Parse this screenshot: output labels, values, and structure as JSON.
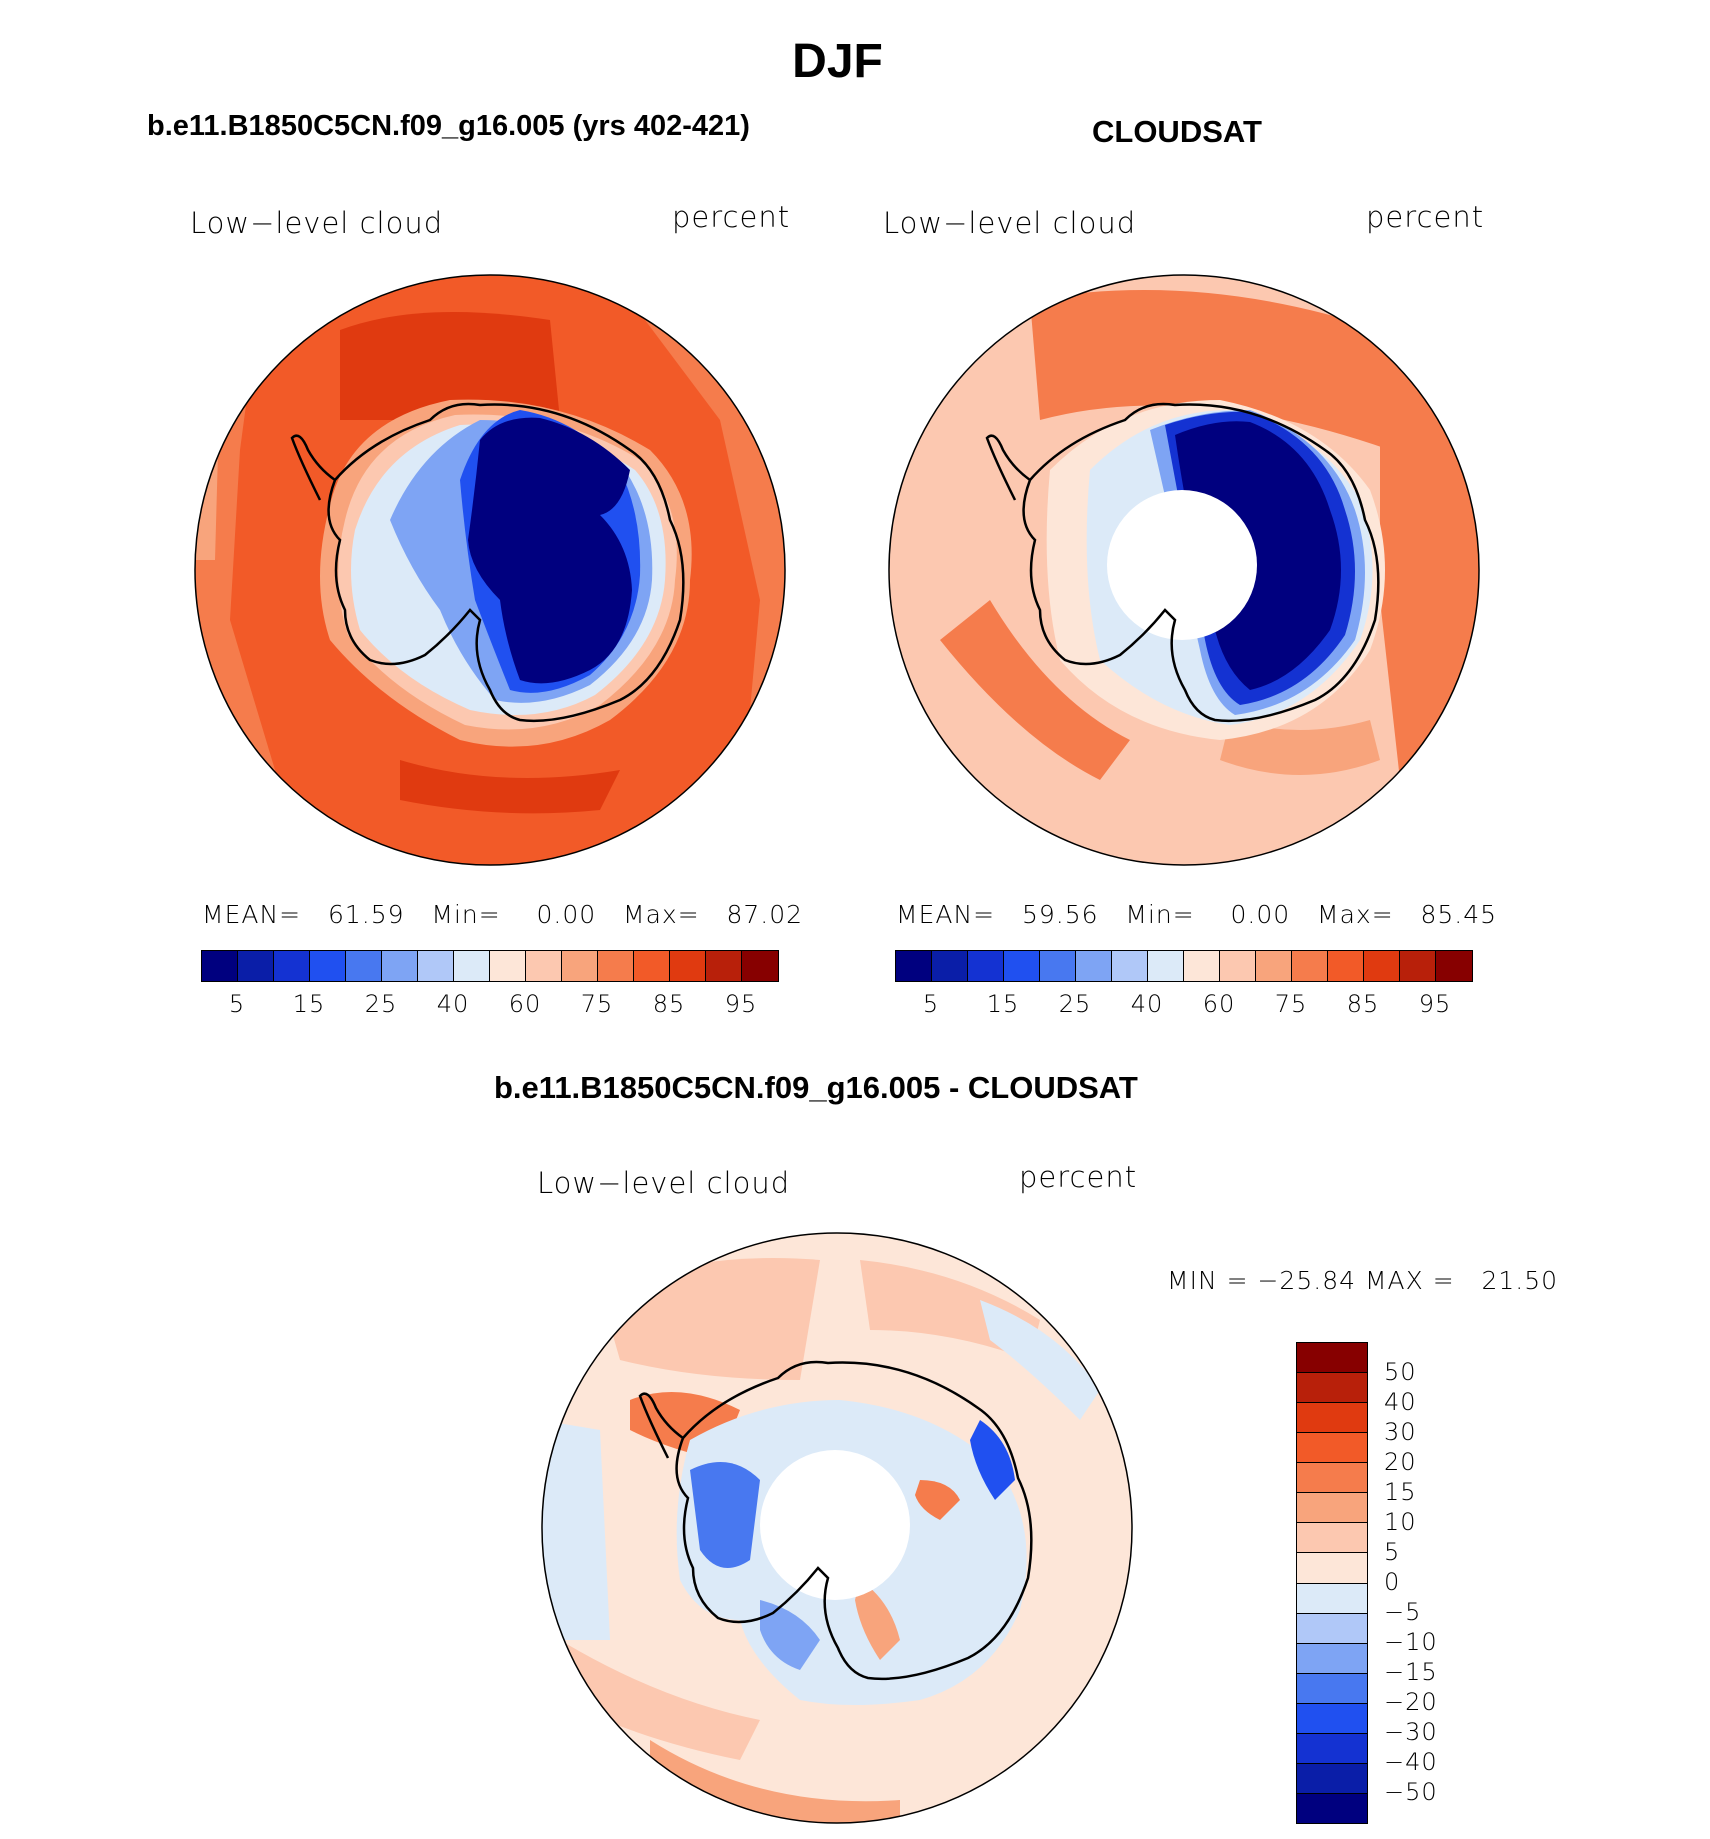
{
  "page_title": "DJF",
  "panel_a": {
    "title": "b.e11.B1850C5CN.f09_g16.005 (yrs 402-421)",
    "left_label": "Low−level cloud",
    "right_label": "percent",
    "stats": {
      "mean_label": "MEAN=",
      "mean": "61.59",
      "min_label": "Min=",
      "min": "0.00",
      "max_label": "Max=",
      "max": "87.02"
    }
  },
  "panel_b": {
    "title": "CLOUDSAT",
    "left_label": "Low−level cloud",
    "right_label": "percent",
    "stats": {
      "mean_label": "MEAN=",
      "mean": "59.56",
      "min_label": "Min=",
      "min": "0.00",
      "max_label": "Max=",
      "max": "85.45"
    }
  },
  "panel_c": {
    "title": "b.e11.B1850C5CN.f09_g16.005 - CLOUDSAT",
    "left_label": "Low−level cloud",
    "right_label": "percent",
    "minmax": "MIN = −25.84 MAX =   21.50"
  },
  "colorbar_top": {
    "colors": [
      "#00007f",
      "#0a1ea8",
      "#1432d2",
      "#2050f0",
      "#4878f0",
      "#7ea4f4",
      "#b0c8f8",
      "#dceaf8",
      "#fde6d8",
      "#fcc8b0",
      "#f8a47c",
      "#f57c4c",
      "#f25a28",
      "#e03a10",
      "#b8200a",
      "#870000"
    ],
    "tick_labels": [
      "5",
      "15",
      "25",
      "40",
      "60",
      "75",
      "85",
      "95"
    ]
  },
  "colorbar_diff": {
    "colors": [
      "#00007f",
      "#0a1ea8",
      "#1432d2",
      "#2050f0",
      "#4878f0",
      "#7ea4f4",
      "#b0c8f8",
      "#dceaf8",
      "#fde6d8",
      "#fcc8b0",
      "#f8a47c",
      "#f57c4c",
      "#f25a28",
      "#e03a10",
      "#b8200a",
      "#870000"
    ],
    "tick_labels": [
      "50",
      "40",
      "30",
      "20",
      "15",
      "10",
      "5",
      "0",
      "−5",
      "−10",
      "−15",
      "−20",
      "−30",
      "−40",
      "−50"
    ]
  }
}
